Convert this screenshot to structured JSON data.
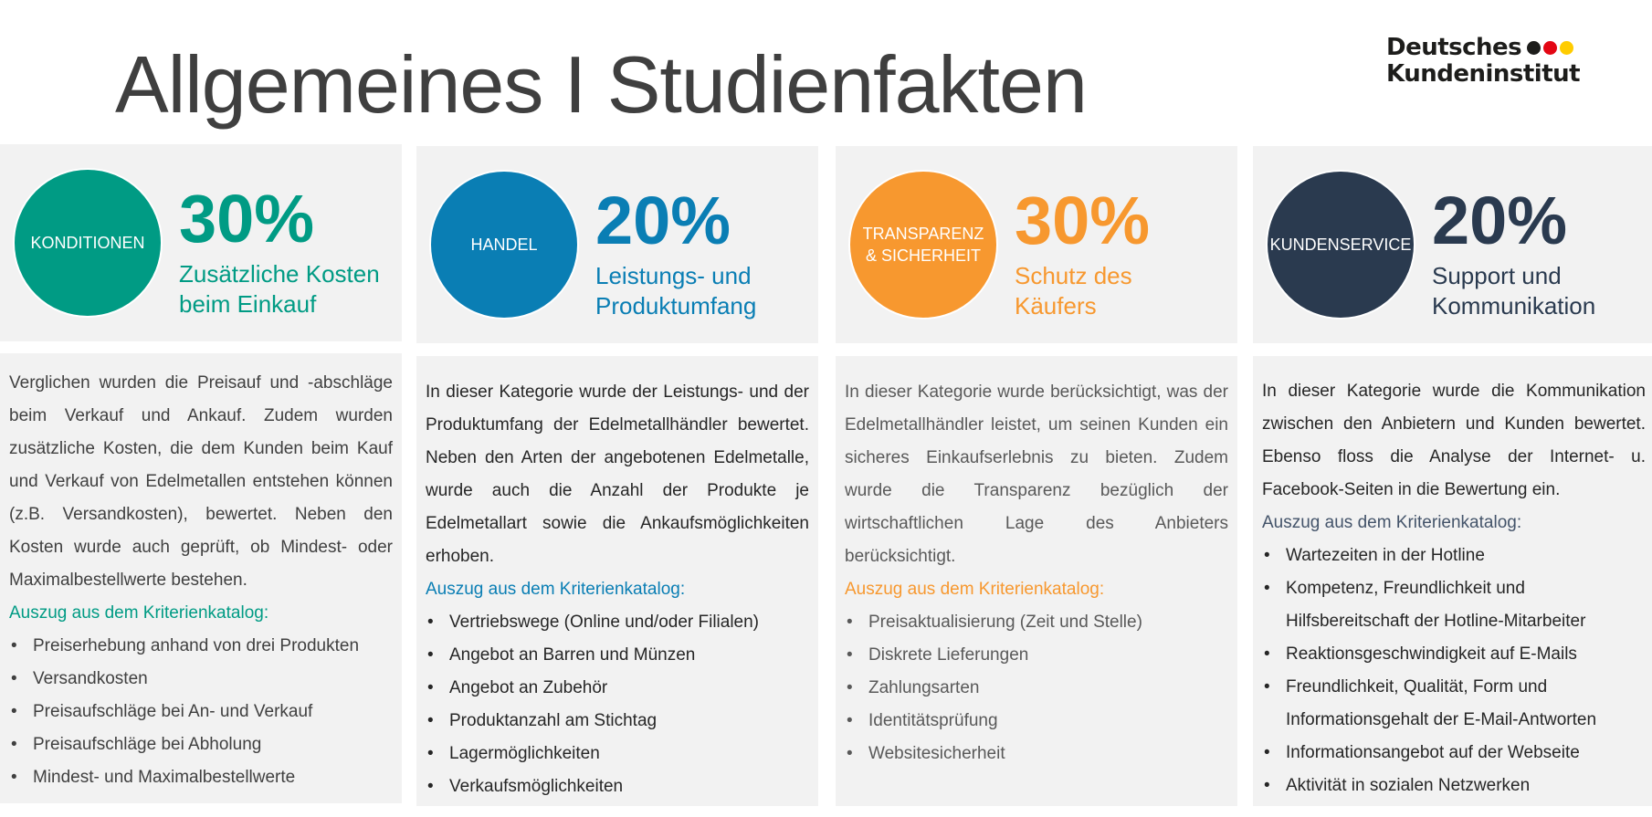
{
  "title": "Allgemeines I Studienfakten",
  "logo": {
    "line1": "Deutsches",
    "line2": "Kundeninstitut",
    "dot_colors": [
      "#1d1d1b",
      "#e30613",
      "#ffcc00"
    ]
  },
  "columns": [
    {
      "color": "#009B84",
      "circle": "KONDITIONEN",
      "percent": "30%",
      "subtitle": [
        "Zusätzliche Kosten",
        "beim Einkauf"
      ],
      "body": "Verglichen wurden die Preisauf und -abschläge beim Verkauf und Ankauf. Zudem wurden zusätzliche Kosten, die dem Kunden beim Kauf und Verkauf von Edelmetallen entstehen können (z.B. Versandkosten), bewertet. Neben den Kosten wurde auch geprüft, ob Mindest- oder Maximalbestellwerte bestehen.",
      "katalog": "Auszug aus dem Kriterienkatalog:",
      "items": [
        "Preiserhebung anhand von drei Produkten",
        "Versandkosten",
        "Preisaufschläge bei An- und Verkauf",
        "Preisaufschläge bei Abholung",
        "Mindest- und Maximalbestellwerte"
      ]
    },
    {
      "color": "#0A7EB4",
      "circle": "HANDEL",
      "percent": "20%",
      "subtitle": [
        "Leistungs- und",
        "Produktumfang"
      ],
      "body": "In dieser Kategorie wurde der Leistungs- und der Produktumfang der Edelmetallhändler bewertet. Neben den Arten der angebotenen Edelmetalle, wurde auch die Anzahl der Produkte je Edelmetallart sowie die Ankaufsmöglichkeiten erhoben.",
      "katalog": "Auszug aus dem Kriterienkatalog:",
      "items": [
        "Vertriebswege (Online und/oder Filialen)",
        "Angebot an Barren und Münzen",
        "Angebot an Zubehör",
        "Produktanzahl am Stichtag",
        "Lagermöglichkeiten",
        "Verkaufsmöglichkeiten"
      ]
    },
    {
      "color": "#F7982F",
      "circle": "TRANSPARENZ & SICHERHEIT",
      "percent": "30%",
      "subtitle": [
        "Schutz des",
        "Käufers"
      ],
      "body": "In dieser Kategorie wurde berücksichtigt, was der Edelmetallhändler leistet, um seinen Kunden ein sicheres Einkaufserlebnis zu bieten. Zudem wurde die Transparenz bezüglich der wirtschaftlichen Lage des Anbieters berücksichtigt.",
      "katalog": "Auszug aus dem Kriterienkatalog:",
      "items": [
        "Preisaktualisierung (Zeit und Stelle)",
        "Diskrete Lieferungen",
        "Zahlungsarten",
        "Identitätsprüfung",
        "Websitesicherheit"
      ]
    },
    {
      "color": "#2A3A4F",
      "circle": "KUNDENSERVICE",
      "percent": "20%",
      "subtitle": [
        "Support und",
        "Kommunikation"
      ],
      "body": "In dieser Kategorie wurde die Kommunikation zwischen den Anbietern und Kunden bewertet. Ebenso floss die Analyse der Internet- u. Facebook-Seiten in die Bewertung ein.",
      "katalog": "Auszug aus dem Kriterienkatalog:",
      "items": [
        "Wartezeiten in der Hotline",
        "Kompetenz, Freundlichkeit und Hilfsbereitschaft der Hotline-Mitarbeiter",
        "Reaktionsgeschwindigkeit auf E-Mails",
        "Freundlichkeit, Qualität, Form und Informationsgehalt der E-Mail-Antworten",
        "Informationsangebot auf der Webseite",
        "Aktivität in sozialen Netzwerken"
      ]
    }
  ]
}
